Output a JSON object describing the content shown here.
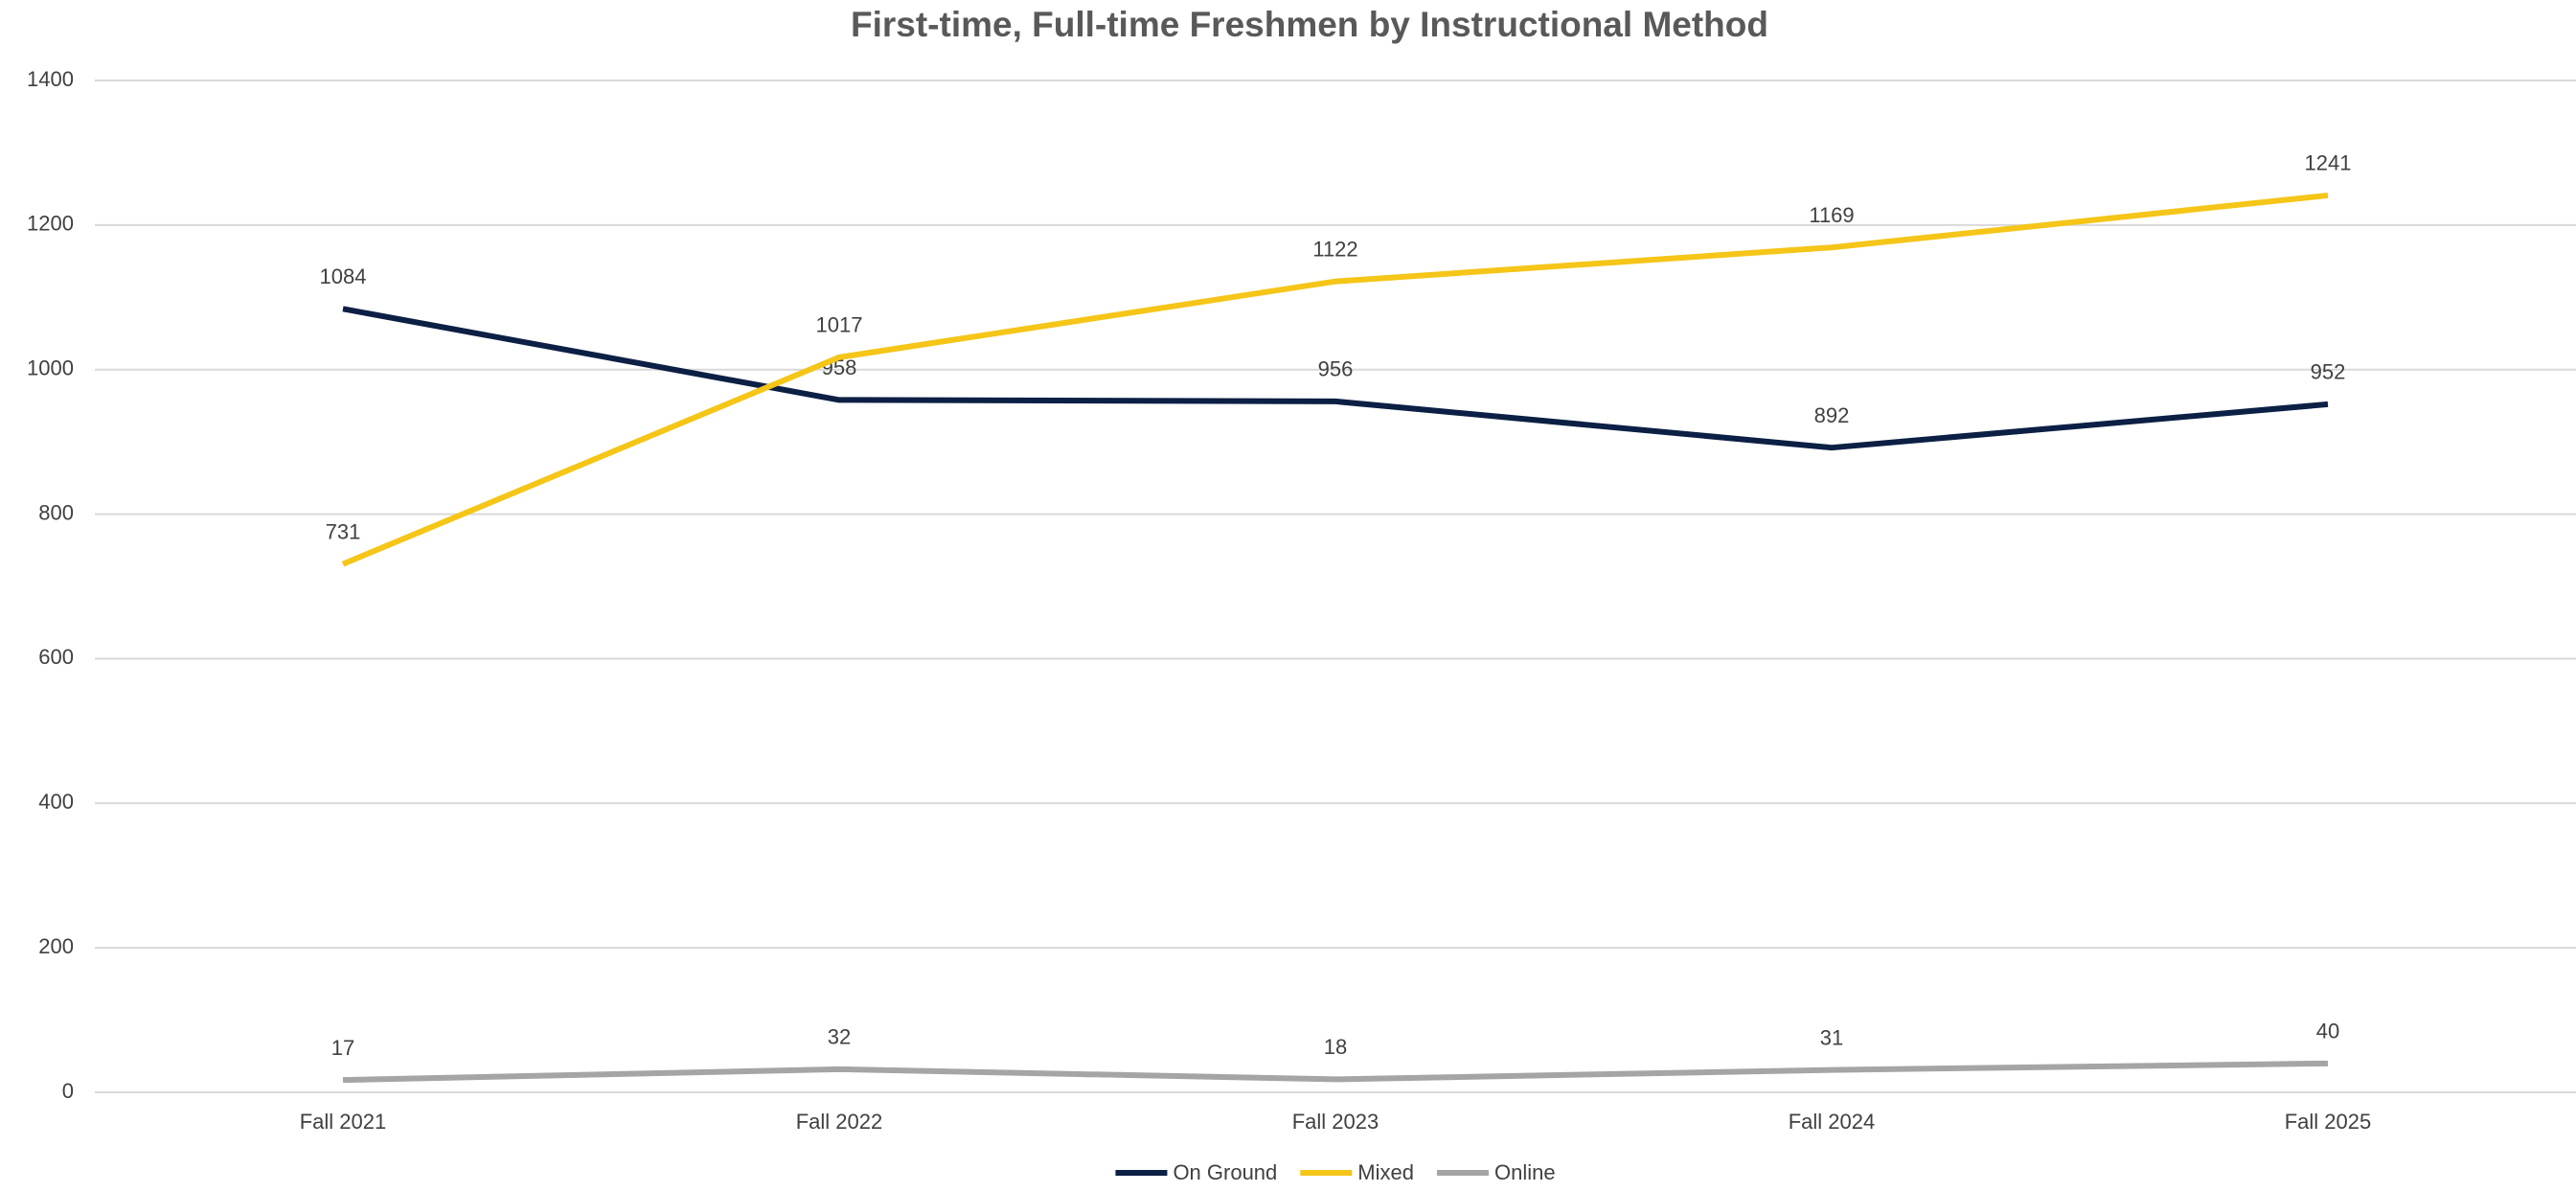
{
  "chart_data": {
    "type": "line",
    "title": "First-time, Full-time Freshmen by Instructional Method",
    "categories": [
      "Fall 2021",
      "Fall 2022",
      "Fall 2023",
      "Fall 2024",
      "Fall 2025"
    ],
    "series": [
      {
        "name": "On Ground",
        "color": "#0c1f44",
        "values": [
          1084,
          958,
          956,
          892,
          952
        ]
      },
      {
        "name": "Mixed",
        "color": "#f5c518",
        "values": [
          731,
          1017,
          1122,
          1169,
          1241
        ]
      },
      {
        "name": "Online",
        "color": "#a5a5a5",
        "values": [
          17,
          32,
          18,
          31,
          40
        ]
      }
    ],
    "ylim": [
      0,
      1400
    ],
    "yticks": [
      0,
      200,
      400,
      600,
      800,
      1000,
      1200,
      1400
    ],
    "grid": true,
    "legend": "bottom"
  }
}
